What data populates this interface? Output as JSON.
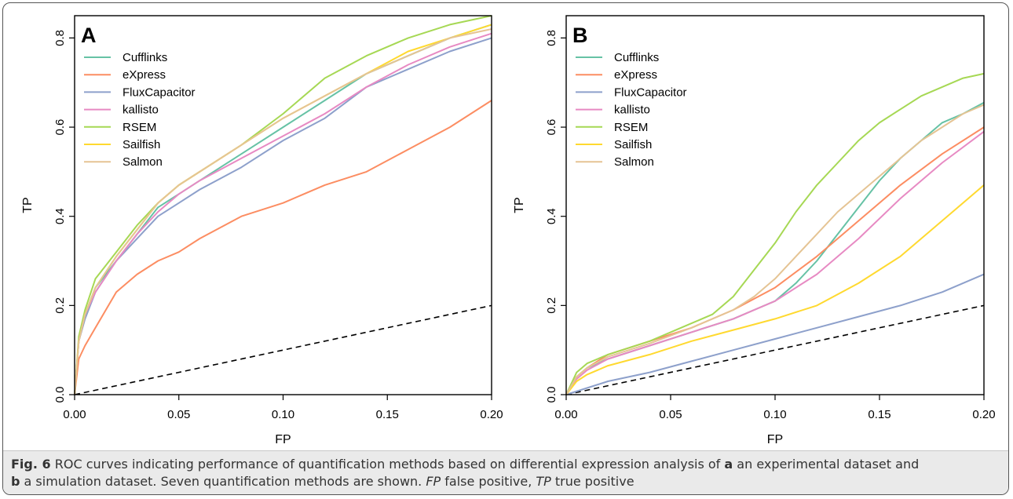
{
  "caption": {
    "label": "Fig. 6",
    "text_1": " ROC curves indicating performance of quantification methods based on differential expression analysis of ",
    "panel_a": "a",
    "text_2": " an experimental dataset and ",
    "panel_b": "b",
    "text_3": " a simulation dataset. Seven quantification methods are shown. ",
    "abbr_fp": "FP",
    "text_4": " false positive, ",
    "abbr_tp": "TP",
    "text_5": " true positive"
  },
  "colors": {
    "Cufflinks": "#66c2a5",
    "eXpress": "#fc8d62",
    "FluxCapacitor": "#8da0cb",
    "kallisto": "#e78ac3",
    "RSEM": "#a6d854",
    "Sailfish": "#ffd92f",
    "Salmon": "#e5c494"
  },
  "chart_data": [
    {
      "type": "line",
      "panel_label": "A",
      "xlabel": "FP",
      "ylabel": "TP",
      "xlim": [
        0,
        0.2
      ],
      "ylim": [
        0,
        0.85
      ],
      "xticks": [
        "0.00",
        "0.05",
        "0.10",
        "0.15",
        "0.20"
      ],
      "yticks": [
        "0.0",
        "0.2",
        "0.4",
        "0.6",
        "0.8"
      ],
      "legend_position": "top-left",
      "diagonal_reference": true,
      "series": [
        {
          "name": "Cufflinks",
          "x": [
            0,
            0.002,
            0.005,
            0.01,
            0.02,
            0.03,
            0.04,
            0.05,
            0.06,
            0.08,
            0.1,
            0.12,
            0.14,
            0.16,
            0.18,
            0.2
          ],
          "y": [
            0,
            0.12,
            0.18,
            0.24,
            0.3,
            0.36,
            0.42,
            0.45,
            0.48,
            0.54,
            0.6,
            0.66,
            0.72,
            0.76,
            0.8,
            0.83
          ]
        },
        {
          "name": "eXpress",
          "x": [
            0,
            0.002,
            0.005,
            0.01,
            0.015,
            0.02,
            0.03,
            0.04,
            0.05,
            0.06,
            0.08,
            0.1,
            0.12,
            0.14,
            0.16,
            0.18,
            0.2
          ],
          "y": [
            0,
            0.08,
            0.11,
            0.15,
            0.19,
            0.23,
            0.27,
            0.3,
            0.32,
            0.35,
            0.4,
            0.43,
            0.47,
            0.5,
            0.55,
            0.6,
            0.66
          ]
        },
        {
          "name": "FluxCapacitor",
          "x": [
            0,
            0.002,
            0.005,
            0.01,
            0.02,
            0.03,
            0.04,
            0.05,
            0.06,
            0.08,
            0.1,
            0.12,
            0.14,
            0.16,
            0.18,
            0.2
          ],
          "y": [
            0,
            0.12,
            0.17,
            0.23,
            0.3,
            0.35,
            0.4,
            0.43,
            0.46,
            0.51,
            0.57,
            0.62,
            0.69,
            0.73,
            0.77,
            0.8
          ]
        },
        {
          "name": "kallisto",
          "x": [
            0,
            0.002,
            0.005,
            0.01,
            0.02,
            0.03,
            0.04,
            0.05,
            0.06,
            0.08,
            0.1,
            0.12,
            0.14,
            0.16,
            0.18,
            0.2
          ],
          "y": [
            0,
            0.12,
            0.18,
            0.23,
            0.3,
            0.36,
            0.41,
            0.45,
            0.48,
            0.53,
            0.58,
            0.63,
            0.69,
            0.74,
            0.78,
            0.81
          ]
        },
        {
          "name": "RSEM",
          "x": [
            0,
            0.002,
            0.005,
            0.01,
            0.02,
            0.03,
            0.04,
            0.05,
            0.06,
            0.08,
            0.1,
            0.12,
            0.14,
            0.16,
            0.18,
            0.2
          ],
          "y": [
            0,
            0.13,
            0.19,
            0.26,
            0.32,
            0.38,
            0.43,
            0.47,
            0.5,
            0.56,
            0.63,
            0.71,
            0.76,
            0.8,
            0.83,
            0.85
          ]
        },
        {
          "name": "Sailfish",
          "x": [
            0,
            0.002,
            0.005,
            0.01,
            0.02,
            0.03,
            0.04,
            0.05,
            0.06,
            0.08,
            0.1,
            0.12,
            0.14,
            0.16,
            0.18,
            0.2
          ],
          "y": [
            0,
            0.12,
            0.18,
            0.24,
            0.31,
            0.37,
            0.43,
            0.47,
            0.5,
            0.56,
            0.62,
            0.67,
            0.72,
            0.77,
            0.8,
            0.83
          ]
        },
        {
          "name": "Salmon",
          "x": [
            0,
            0.002,
            0.005,
            0.01,
            0.02,
            0.03,
            0.04,
            0.05,
            0.06,
            0.08,
            0.1,
            0.12,
            0.14,
            0.16,
            0.18,
            0.2
          ],
          "y": [
            0,
            0.12,
            0.18,
            0.24,
            0.31,
            0.37,
            0.43,
            0.47,
            0.5,
            0.56,
            0.62,
            0.67,
            0.72,
            0.76,
            0.8,
            0.82
          ]
        }
      ]
    },
    {
      "type": "line",
      "panel_label": "B",
      "xlabel": "FP",
      "ylabel": "TP",
      "xlim": [
        0,
        0.2
      ],
      "ylim": [
        0,
        0.85
      ],
      "xticks": [
        "0.00",
        "0.05",
        "0.10",
        "0.15",
        "0.20"
      ],
      "yticks": [
        "0.0",
        "0.2",
        "0.4",
        "0.6",
        "0.8"
      ],
      "legend_position": "top-left",
      "diagonal_reference": true,
      "series": [
        {
          "name": "Cufflinks",
          "x": [
            0,
            0.005,
            0.01,
            0.02,
            0.04,
            0.06,
            0.08,
            0.09,
            0.1,
            0.11,
            0.12,
            0.13,
            0.14,
            0.15,
            0.16,
            0.17,
            0.18,
            0.19,
            0.2
          ],
          "y": [
            0,
            0.04,
            0.06,
            0.08,
            0.11,
            0.14,
            0.17,
            0.19,
            0.21,
            0.25,
            0.3,
            0.36,
            0.42,
            0.48,
            0.53,
            0.57,
            0.61,
            0.63,
            0.655
          ]
        },
        {
          "name": "eXpress",
          "x": [
            0,
            0.005,
            0.01,
            0.02,
            0.04,
            0.06,
            0.08,
            0.1,
            0.12,
            0.14,
            0.16,
            0.18,
            0.2
          ],
          "y": [
            0,
            0.04,
            0.06,
            0.09,
            0.12,
            0.15,
            0.19,
            0.24,
            0.31,
            0.39,
            0.47,
            0.54,
            0.6
          ]
        },
        {
          "name": "FluxCapacitor",
          "x": [
            0,
            0.02,
            0.04,
            0.06,
            0.08,
            0.1,
            0.12,
            0.14,
            0.16,
            0.18,
            0.2
          ],
          "y": [
            0,
            0.03,
            0.05,
            0.075,
            0.1,
            0.125,
            0.15,
            0.175,
            0.2,
            0.23,
            0.27
          ]
        },
        {
          "name": "kallisto",
          "x": [
            0,
            0.005,
            0.01,
            0.02,
            0.04,
            0.06,
            0.08,
            0.1,
            0.12,
            0.14,
            0.16,
            0.18,
            0.2
          ],
          "y": [
            0,
            0.035,
            0.055,
            0.08,
            0.11,
            0.14,
            0.17,
            0.21,
            0.27,
            0.35,
            0.44,
            0.52,
            0.59
          ]
        },
        {
          "name": "RSEM",
          "x": [
            0,
            0.005,
            0.01,
            0.02,
            0.04,
            0.06,
            0.07,
            0.08,
            0.09,
            0.1,
            0.11,
            0.12,
            0.13,
            0.14,
            0.15,
            0.16,
            0.17,
            0.18,
            0.19,
            0.2
          ],
          "y": [
            0,
            0.05,
            0.07,
            0.09,
            0.12,
            0.16,
            0.18,
            0.22,
            0.28,
            0.34,
            0.41,
            0.47,
            0.52,
            0.57,
            0.61,
            0.64,
            0.67,
            0.69,
            0.71,
            0.72
          ]
        },
        {
          "name": "Sailfish",
          "x": [
            0,
            0.005,
            0.01,
            0.02,
            0.04,
            0.06,
            0.08,
            0.1,
            0.12,
            0.14,
            0.16,
            0.18,
            0.2
          ],
          "y": [
            0,
            0.03,
            0.045,
            0.065,
            0.09,
            0.12,
            0.145,
            0.17,
            0.2,
            0.25,
            0.31,
            0.39,
            0.47
          ]
        },
        {
          "name": "Salmon",
          "x": [
            0,
            0.005,
            0.01,
            0.02,
            0.04,
            0.06,
            0.08,
            0.09,
            0.1,
            0.11,
            0.12,
            0.13,
            0.14,
            0.15,
            0.16,
            0.17,
            0.18,
            0.19,
            0.2
          ],
          "y": [
            0,
            0.04,
            0.06,
            0.085,
            0.115,
            0.15,
            0.19,
            0.22,
            0.26,
            0.31,
            0.36,
            0.41,
            0.45,
            0.49,
            0.53,
            0.57,
            0.6,
            0.63,
            0.65
          ]
        }
      ]
    }
  ]
}
